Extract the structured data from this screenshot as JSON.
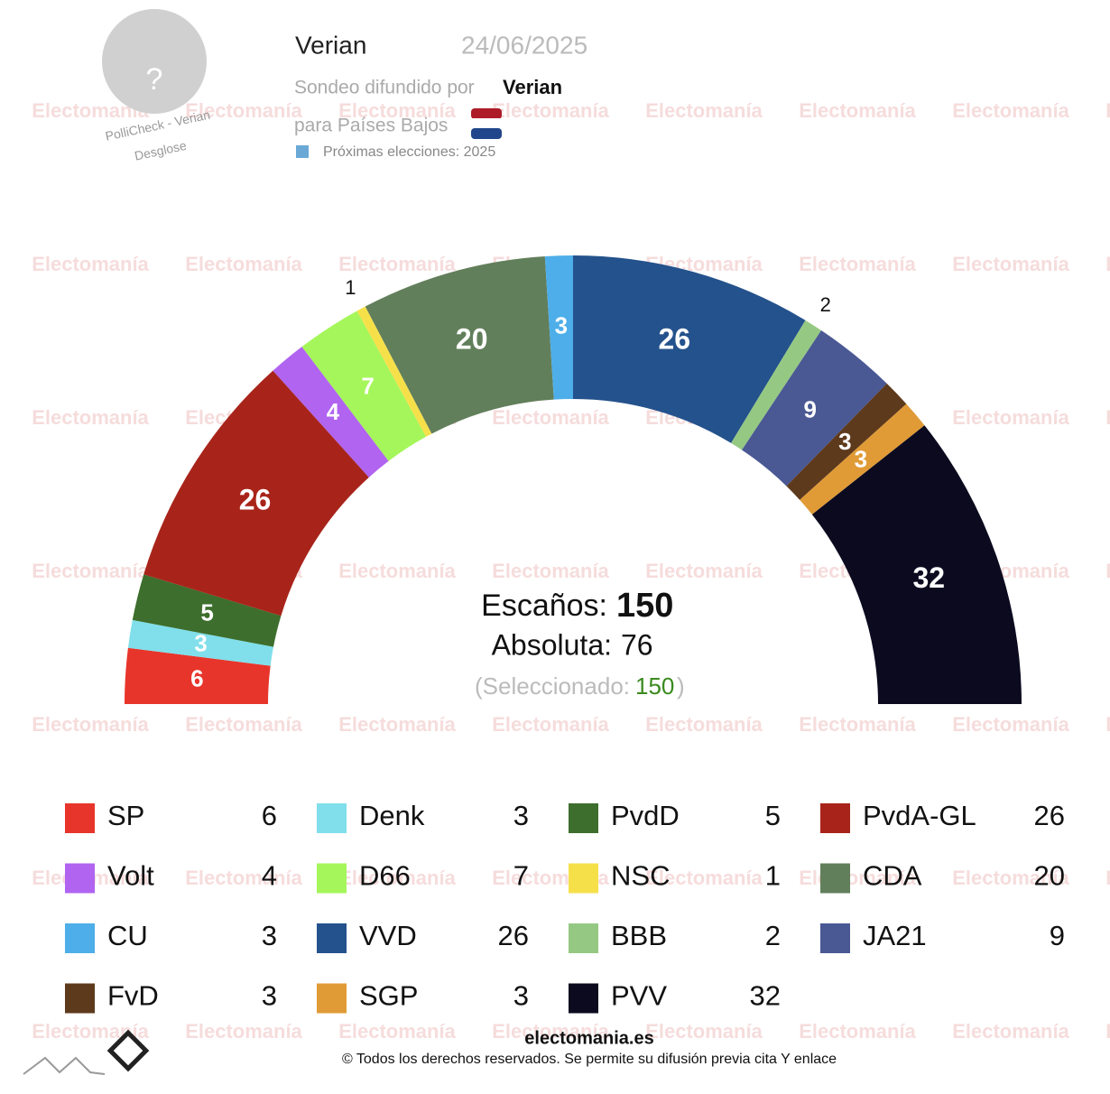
{
  "header": {
    "pollster": "Verian",
    "date": "24/06/2025",
    "published_by_label": "Sondeo difundido por",
    "published_by": "Verian",
    "country": "para Países Bajos",
    "next_elections": "Próximas elecciones: 2025",
    "avatar": "?",
    "pollicheck": "PolliCheck - Verian",
    "breakdown": "Desglose"
  },
  "watermark": "Electomanía",
  "chart_data": {
    "type": "parliament",
    "categories": [
      "SP",
      "Denk",
      "PvdD",
      "PvdA-GL",
      "Volt",
      "D66",
      "NSC",
      "CDA",
      "CU",
      "VVD",
      "BBB",
      "JA21",
      "FvD",
      "SGP",
      "PVV"
    ],
    "values": [
      6,
      3,
      5,
      26,
      4,
      7,
      1,
      20,
      3,
      26,
      2,
      9,
      3,
      3,
      32
    ],
    "colors": [
      "#e8352b",
      "#80dfea",
      "#3d6e2d",
      "#a8241a",
      "#b064f0",
      "#a5f65a",
      "#f6e04a",
      "#627f5b",
      "#4daee9",
      "#24528c",
      "#95c983",
      "#4a5894",
      "#5e3a1c",
      "#e09b37",
      "#0b0a1f"
    ],
    "seats_label": "Escaños:",
    "seats": 150,
    "majority_label": "Absoluta:",
    "majority": 76,
    "selected_label": "(Seleccionado:",
    "selected": 150,
    "selected_close": ")"
  },
  "footer": {
    "site": "electomania.es",
    "rights": "© Todos los derechos reservados. Se permite su difusión previa cita Y enlace"
  }
}
